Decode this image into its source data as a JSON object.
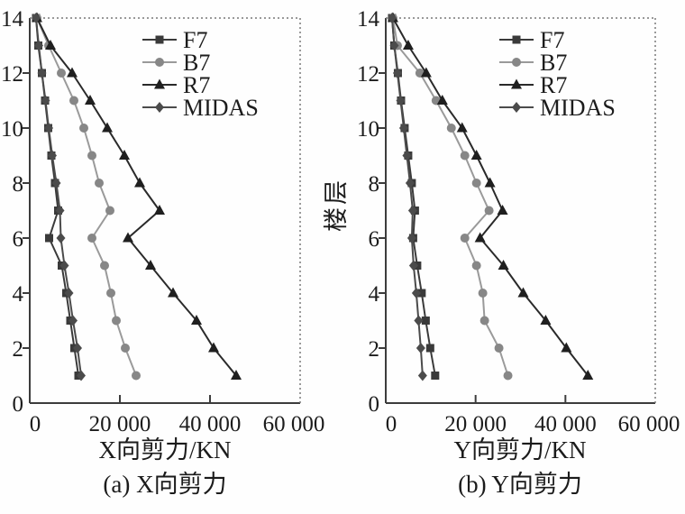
{
  "figure": {
    "y_axis_label": "楼层",
    "text_color": "#1b1b1b",
    "background_color": "#fefefe",
    "axis_color": "#3c3c3c"
  },
  "chart_data": [
    {
      "type": "line",
      "title": "(a) X向剪力",
      "xlabel": "X向剪力/KN",
      "ylabel": "楼层",
      "xlim": [
        0,
        60000
      ],
      "ylim": [
        0,
        14
      ],
      "xticks": [
        0,
        20000,
        40000,
        60000
      ],
      "xtick_labels": [
        "0",
        "20 000",
        "40 000",
        "60 000"
      ],
      "yticks": [
        0,
        2,
        4,
        6,
        8,
        10,
        12,
        14
      ],
      "grid": false,
      "legend_position": "inside-top-center",
      "floors": [
        1,
        2,
        3,
        4,
        5,
        6,
        7,
        8,
        9,
        10,
        11,
        12,
        13,
        14
      ],
      "series": [
        {
          "name": "F7",
          "marker": "square",
          "color": "#3a3a3a",
          "line_color": "#3a3a3a",
          "values": [
            10800,
            9900,
            9000,
            8100,
            7100,
            4300,
            6300,
            5600,
            4800,
            4100,
            3400,
            2700,
            1900,
            1400
          ]
        },
        {
          "name": "B7",
          "marker": "circle",
          "color": "#878787",
          "line_color": "#9a9a9a",
          "values": [
            23600,
            21200,
            19200,
            18000,
            16600,
            13800,
            17800,
            15400,
            13800,
            12000,
            9800,
            7000,
            4200,
            1600
          ]
        },
        {
          "name": "R7",
          "marker": "triangle",
          "color": "#1f1f1f",
          "line_color": "#2a2a2a",
          "values": [
            45800,
            40800,
            37000,
            31800,
            26800,
            21800,
            28800,
            24400,
            21000,
            17200,
            13400,
            9400,
            4600,
            1600
          ]
        },
        {
          "name": "MIDAS",
          "marker": "diamond",
          "color": "#4b4b4b",
          "line_color": "#4b4b4b",
          "values": [
            11400,
            10600,
            9600,
            8700,
            7700,
            6900,
            6700,
            5900,
            5000,
            4200,
            3500,
            2700,
            2000,
            1400
          ]
        }
      ]
    },
    {
      "type": "line",
      "title": "(b) Y向剪力",
      "xlabel": "Y向剪力/KN",
      "ylabel": "楼层",
      "xlim": [
        0,
        60000
      ],
      "ylim": [
        0,
        14
      ],
      "xticks": [
        0,
        20000,
        40000,
        60000
      ],
      "xtick_labels": [
        "0",
        "20 000",
        "40 000",
        "60 000"
      ],
      "yticks": [
        0,
        2,
        4,
        6,
        8,
        10,
        12,
        14
      ],
      "grid": false,
      "legend_position": "inside-top-center",
      "floors": [
        1,
        2,
        3,
        4,
        5,
        6,
        7,
        8,
        9,
        10,
        11,
        12,
        13,
        14
      ],
      "series": [
        {
          "name": "F7",
          "marker": "square",
          "color": "#3a3a3a",
          "line_color": "#3a3a3a",
          "values": [
            11000,
            9900,
            8900,
            8000,
            7000,
            6100,
            6500,
            5800,
            5000,
            4200,
            3400,
            2700,
            1900,
            1400
          ]
        },
        {
          "name": "B7",
          "marker": "circle",
          "color": "#878787",
          "line_color": "#9a9a9a",
          "values": [
            27200,
            25200,
            22000,
            21600,
            20200,
            17600,
            23000,
            20200,
            17600,
            14600,
            11200,
            7600,
            2600,
            1600
          ]
        },
        {
          "name": "R7",
          "marker": "triangle",
          "color": "#1f1f1f",
          "line_color": "#2a2a2a",
          "values": [
            45000,
            40200,
            35600,
            30600,
            26200,
            21000,
            26000,
            23200,
            20200,
            17000,
            12600,
            9000,
            5000,
            1600
          ]
        },
        {
          "name": "MIDAS",
          "marker": "diamond",
          "color": "#4b4b4b",
          "line_color": "#4b4b4b",
          "values": [
            8200,
            7800,
            7300,
            6800,
            6200,
            5800,
            6000,
            5400,
            4700,
            4000,
            3300,
            2600,
            1900,
            1400
          ]
        }
      ]
    }
  ]
}
